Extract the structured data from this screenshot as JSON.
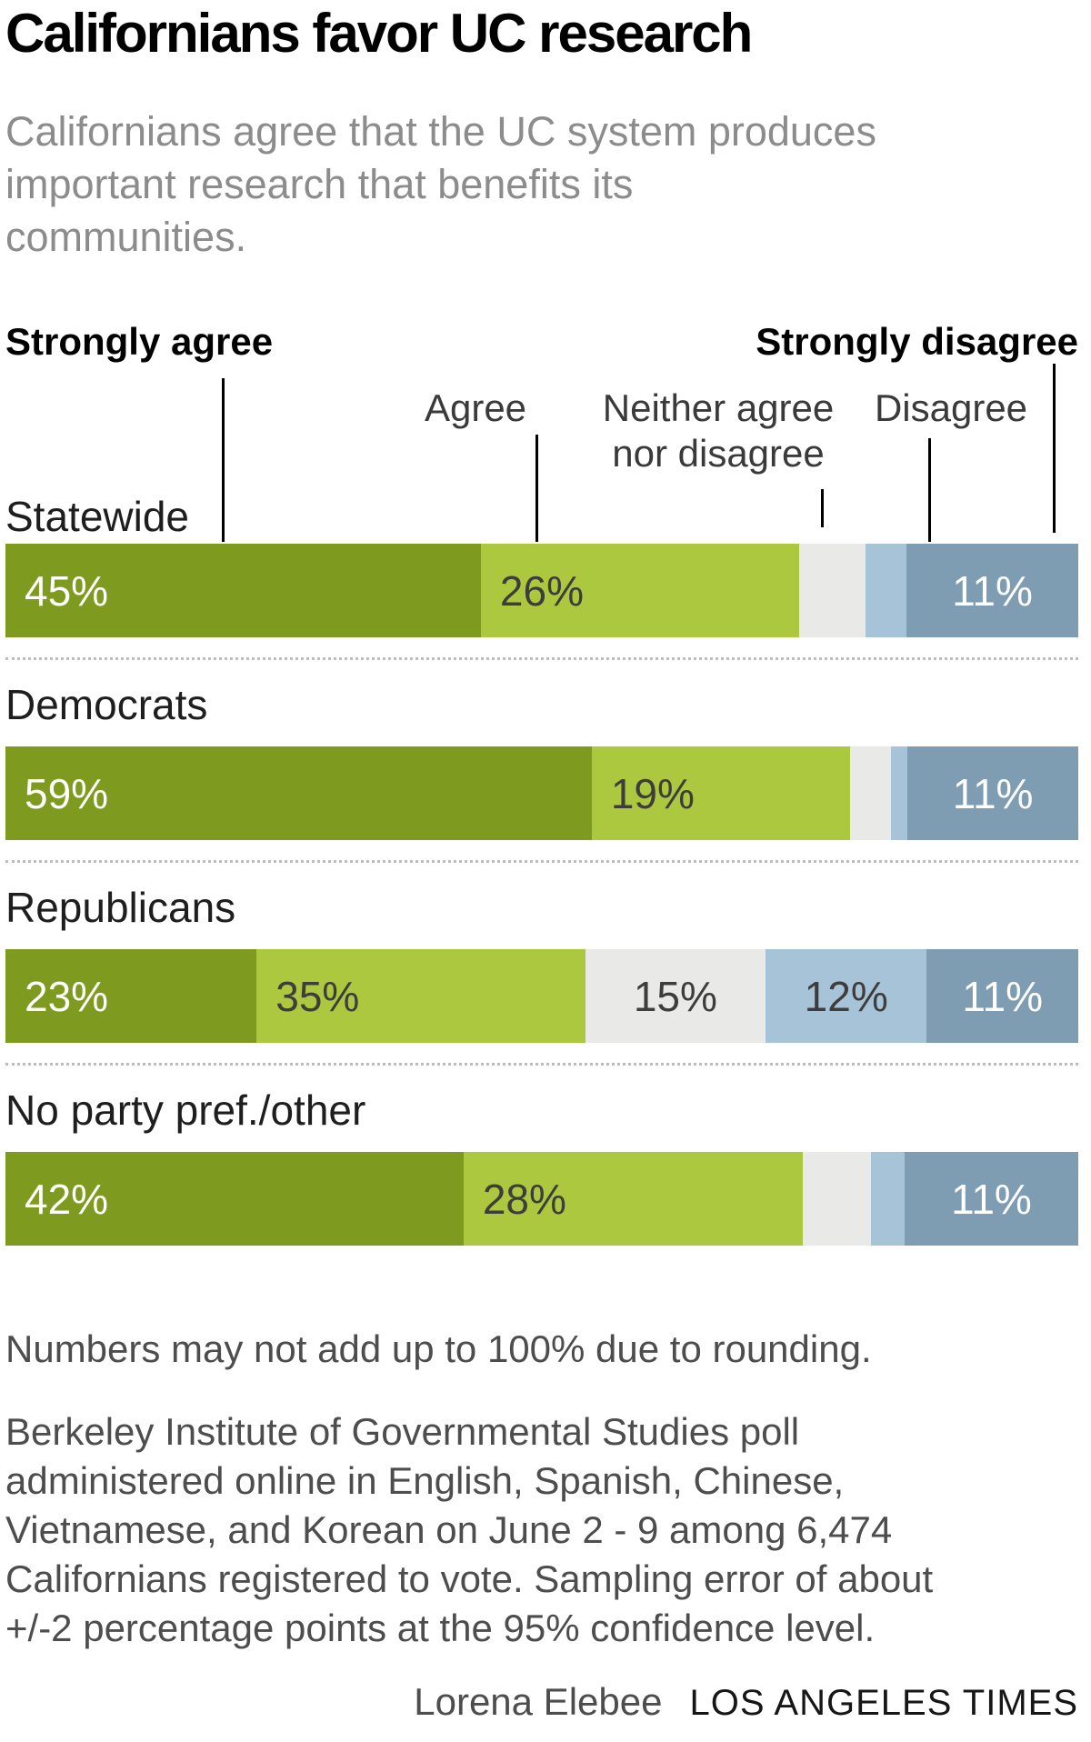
{
  "title": "Californians favor UC research",
  "subtitle": "Californians agree that the UC system produces\nimportant research that benefits its\ncommunities.",
  "colors": {
    "strongly_agree": "#7e9b1f",
    "agree": "#abc83e",
    "neither": "#e9e9e7",
    "disagree": "#a7c3d8",
    "strongly_disagree": "#7e9db2",
    "label_light": "#ffffff",
    "label_dark": "#3d3d3d",
    "tick": "#000000",
    "separator": "#bdbdbb"
  },
  "legend": {
    "strongly_agree": "Strongly agree",
    "agree": "Agree",
    "neither": "Neither agree\nnor disagree",
    "disagree": "Disagree",
    "strongly_disagree": "Strongly disagree"
  },
  "chart_data": {
    "type": "bar",
    "stacked": true,
    "orientation": "horizontal",
    "normalized_per_row": true,
    "series_names": [
      "Strongly agree",
      "Agree",
      "Neither agree nor disagree",
      "Disagree",
      "Strongly disagree"
    ],
    "rows": [
      {
        "category": "Statewide",
        "segments": [
          {
            "name": "Strongly agree",
            "value": 45,
            "label": "45%"
          },
          {
            "name": "Agree",
            "value": 26,
            "label": "26%"
          },
          {
            "name": "Neither agree nor disagree",
            "value": 8,
            "label": ""
          },
          {
            "name": "Disagree",
            "value": 5,
            "label": ""
          },
          {
            "name": "Strongly disagree",
            "value": 11,
            "label": "11%"
          }
        ]
      },
      {
        "category": "Democrats",
        "segments": [
          {
            "name": "Strongly agree",
            "value": 59,
            "label": "59%"
          },
          {
            "name": "Agree",
            "value": 19,
            "label": "19%"
          },
          {
            "name": "Neither agree nor disagree",
            "value": 5,
            "label": ""
          },
          {
            "name": "Disagree",
            "value": 2,
            "label": ""
          },
          {
            "name": "Strongly disagree",
            "value": 11,
            "label": "11%"
          }
        ]
      },
      {
        "category": "Republicans",
        "segments": [
          {
            "name": "Strongly agree",
            "value": 23,
            "label": "23%"
          },
          {
            "name": "Agree",
            "value": 35,
            "label": "35%"
          },
          {
            "name": "Neither agree nor disagree",
            "value": 15,
            "label": "15%"
          },
          {
            "name": "Disagree",
            "value": 12,
            "label": "12%"
          },
          {
            "name": "Strongly disagree",
            "value": 11,
            "label": "11%"
          }
        ]
      },
      {
        "category": "No party pref./other",
        "segments": [
          {
            "name": "Strongly agree",
            "value": 42,
            "label": "42%"
          },
          {
            "name": "Agree",
            "value": 28,
            "label": "28%"
          },
          {
            "name": "Neither agree nor disagree",
            "value": 8,
            "label": ""
          },
          {
            "name": "Disagree",
            "value": 4,
            "label": ""
          },
          {
            "name": "Strongly disagree",
            "value": 11,
            "label": "11%"
          }
        ]
      }
    ]
  },
  "footnote": "Numbers may not add up to 100% due to rounding.",
  "source": "Berkeley Institute of Governmental Studies poll\nadministered online in English, Spanish, Chinese,\nVietnamese, and Korean on June 2 - 9 among 6,474\nCalifornians registered to vote. Sampling error of about\n+/-2 percentage points at the 95% confidence level.",
  "credit": {
    "author": "Lorena Elebee",
    "brand": "LOS ANGELES TIMES"
  }
}
